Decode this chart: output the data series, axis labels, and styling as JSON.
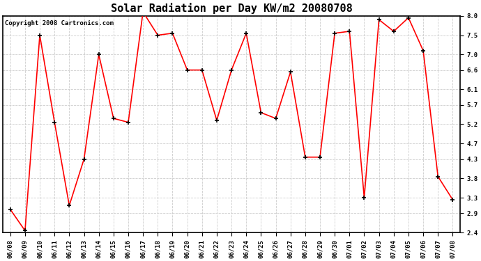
{
  "title": "Solar Radiation per Day KW/m2 20080708",
  "copyright": "Copyright 2008 Cartronics.com",
  "dates": [
    "06/08",
    "06/09",
    "06/10",
    "06/11",
    "06/12",
    "06/13",
    "06/14",
    "06/15",
    "06/16",
    "06/17",
    "06/18",
    "06/19",
    "06/20",
    "06/21",
    "06/22",
    "06/23",
    "06/24",
    "06/25",
    "06/26",
    "06/27",
    "06/28",
    "06/29",
    "06/30",
    "07/01",
    "07/02",
    "07/03",
    "07/04",
    "07/05",
    "07/06",
    "07/07",
    "07/08"
  ],
  "values": [
    3.0,
    2.45,
    7.5,
    5.25,
    3.1,
    4.3,
    7.0,
    5.35,
    5.25,
    8.1,
    7.5,
    7.55,
    6.6,
    6.6,
    5.3,
    6.6,
    7.55,
    5.5,
    5.35,
    6.55,
    4.35,
    4.35,
    7.55,
    7.6,
    3.3,
    7.9,
    7.6,
    7.95,
    7.1,
    3.85,
    3.25
  ],
  "line_color": "#ff0000",
  "marker_color": "#000000",
  "bg_color": "#ffffff",
  "grid_color": "#cccccc",
  "yticks": [
    2.4,
    2.9,
    3.3,
    3.8,
    4.3,
    4.7,
    5.2,
    5.7,
    6.1,
    6.6,
    7.0,
    7.5,
    8.0
  ],
  "ymin": 2.4,
  "ymax": 8.0,
  "title_fontsize": 11,
  "copyright_fontsize": 6.5,
  "tick_fontsize": 6.5
}
